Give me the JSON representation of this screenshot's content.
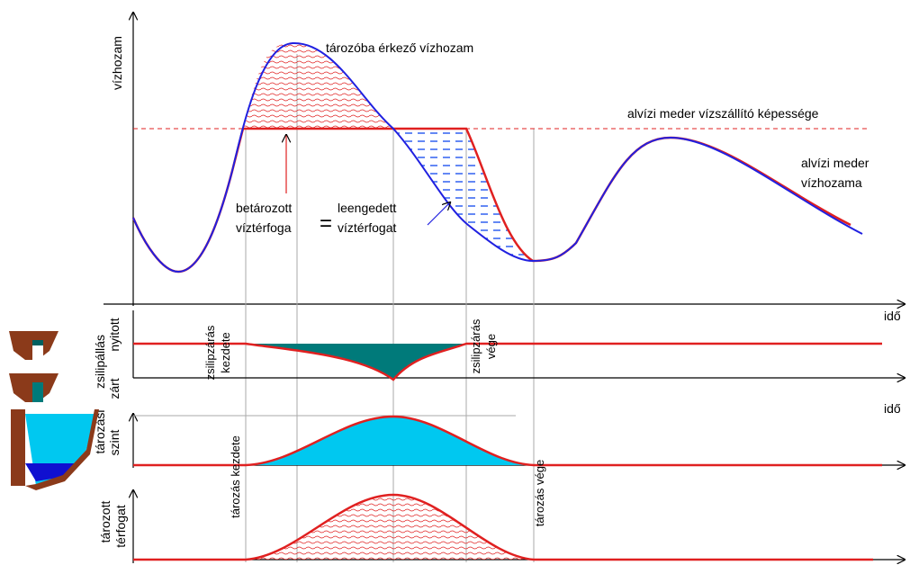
{
  "diagram": {
    "y_label": "vízhozam",
    "inflow_label": "tározóba érkező vízhozam",
    "capacity_label": "alvízi meder vízszállító képessége",
    "outflow_label": [
      "alvízi meder",
      "vízhozama"
    ],
    "stored_label": [
      "betározott",
      "víztérfoga"
    ],
    "equals": "=",
    "released_label": [
      "leengedett",
      "víztérfogat"
    ],
    "time_label_1": "idő",
    "time_label_2": "idő",
    "gate_panel": {
      "label": "zsilipállás",
      "open": "nyitott",
      "closed": "zárt",
      "start": [
        "zsilipzárás",
        "kezdete"
      ],
      "end": [
        "zsilipzárás",
        "vége"
      ]
    },
    "level_panel": {
      "label": [
        "tározási",
        "szint"
      ],
      "start": "tározás kezdete",
      "end": "tározás vége"
    },
    "volume_panel": {
      "label": [
        "tározott",
        "térfogat"
      ]
    }
  }
}
